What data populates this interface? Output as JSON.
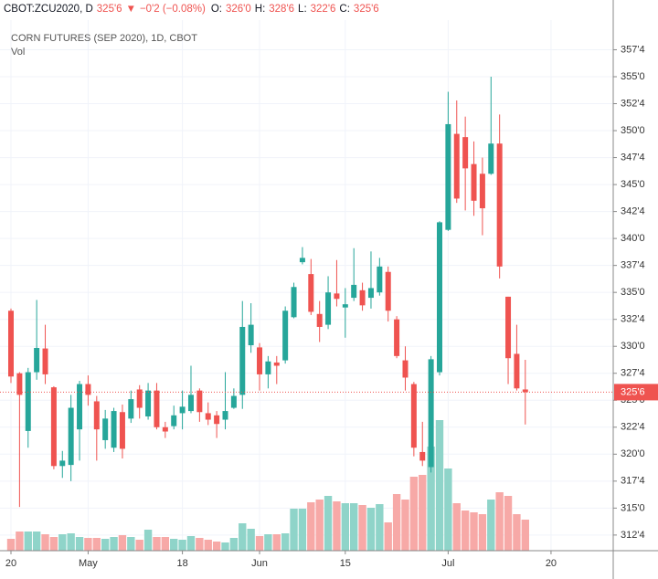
{
  "chart_data": {
    "type": "candlestick",
    "header": {
      "symbol": "CBOT:ZCU2020, D",
      "price": "325'6",
      "arrow": "▼",
      "change": "−0'2 (−0.08%)",
      "o_label": "O:",
      "o": "326'0",
      "h_label": "H:",
      "h": "328'6",
      "l_label": "L:",
      "l": "322'6",
      "c_label": "C:",
      "c": "325'6"
    },
    "title": "CORN FUTURES (SEP 2020), 1D, CBOT",
    "volume_label": "Vol",
    "categories": [
      "20",
      null,
      null,
      null,
      null,
      null,
      null,
      null,
      null,
      "May",
      null,
      null,
      null,
      null,
      null,
      null,
      null,
      null,
      null,
      null,
      "18",
      null,
      null,
      null,
      null,
      null,
      null,
      null,
      null,
      "Jun",
      null,
      null,
      null,
      null,
      null,
      null,
      null,
      null,
      null,
      "15",
      null,
      null,
      null,
      null,
      null,
      null,
      null,
      null,
      null,
      null,
      null,
      "Jul",
      null,
      null,
      null,
      null,
      null,
      null,
      null,
      null,
      null,
      null,
      null,
      "20"
    ],
    "open": [
      333.3,
      327.5,
      322.15,
      327.6,
      329.8,
      326.2,
      318.9,
      319,
      322.3,
      326.5,
      324.9,
      321.3,
      320.6,
      323.9,
      323.3,
      326,
      323.5,
      325.9,
      322.5,
      322.6,
      323.8,
      324,
      325.9,
      323.8,
      323.6,
      323.2,
      324.3,
      325.5,
      330.1,
      329.9,
      327.4,
      328.5,
      328.7,
      332.7,
      337.8,
      336.7,
      333,
      332,
      334.9,
      333.6,
      334.5,
      335.2,
      334.5,
      335,
      336.9,
      332.5,
      328.7,
      326.5,
      320.2,
      318.8,
      327.6,
      340.8,
      349.7,
      349.4,
      346.9,
      346,
      346,
      348.8,
      334.6,
      329.3,
      326,
      null,
      null,
      null
    ],
    "high": [
      333.5,
      327.6,
      328,
      334.3,
      332,
      326.3,
      320.3,
      325.5,
      326.8,
      327.3,
      325.4,
      324.1,
      324.3,
      324.6,
      325.9,
      326.4,
      326.6,
      326.6,
      323,
      324.5,
      325.9,
      328.2,
      326.1,
      324.8,
      324,
      327.6,
      326.1,
      334.2,
      334,
      330.3,
      329.1,
      329.1,
      333.7,
      335.9,
      339.2,
      338.1,
      334.2,
      336.5,
      338,
      335.4,
      339.1,
      335.9,
      338.8,
      338.2,
      337.4,
      332.8,
      330,
      326.7,
      323,
      329.1,
      341.6,
      353.6,
      352.8,
      351.3,
      349,
      347.5,
      355,
      351.5,
      334.6,
      332,
      328.75,
      null,
      null,
      null
    ],
    "low": [
      326.6,
      315.1,
      320.6,
      326.9,
      326.5,
      318.6,
      317.8,
      317.5,
      319.4,
      324.5,
      319.4,
      320.5,
      320.2,
      319.6,
      322.9,
      323.3,
      323.2,
      322.3,
      321.5,
      322.3,
      322.3,
      323.8,
      323,
      322.7,
      321.5,
      322.3,
      324.2,
      324.2,
      329.4,
      325.9,
      326.1,
      326.5,
      328.4,
      332.6,
      337.6,
      332.9,
      330.4,
      331.6,
      333.7,
      330.8,
      334.2,
      333.3,
      333.5,
      334.7,
      332.3,
      328.9,
      325.9,
      319.8,
      318.9,
      318.3,
      327.3,
      340.7,
      343.3,
      342.6,
      342.1,
      340.3,
      345.9,
      336.3,
      326.5,
      325.9,
      322.75,
      null,
      null,
      null
    ],
    "close": [
      327.2,
      325.5,
      327.6,
      329.85,
      327.4,
      318.9,
      319.4,
      324.3,
      326.5,
      325.5,
      322.3,
      323.3,
      324,
      320.5,
      325.1,
      324.3,
      325.9,
      322.5,
      322.1,
      323.6,
      324.4,
      325.5,
      323.9,
      323.2,
      322.8,
      324,
      325.4,
      331.8,
      332,
      327.4,
      328.6,
      328.2,
      333.3,
      335.5,
      338.2,
      333.2,
      331.8,
      335,
      334.4,
      333.9,
      335.7,
      333.8,
      335.4,
      337.4,
      333.3,
      329.1,
      327.1,
      320.6,
      319.4,
      328.8,
      341.5,
      350.6,
      343.7,
      346.5,
      343.5,
      342.8,
      348.8,
      337.4,
      328.9,
      326.1,
      325.75,
      null,
      null,
      null
    ],
    "volume": [
      13,
      21,
      21,
      21,
      18,
      15,
      18,
      19,
      15,
      14,
      14,
      13,
      15,
      17,
      15,
      12,
      23,
      15,
      15,
      13,
      12,
      16,
      14,
      12,
      10,
      9,
      14,
      30,
      24,
      16,
      18,
      18,
      19,
      46,
      46,
      53,
      56,
      60,
      54,
      52,
      52,
      50,
      47,
      51,
      31,
      62,
      56,
      81,
      83,
      114,
      143,
      90,
      52,
      44,
      42,
      40,
      56,
      64,
      60,
      40,
      34,
      null,
      null,
      null
    ],
    "volume_lim": [
      0,
      150
    ],
    "up_color": "#26a69a",
    "down_color": "#ef5350",
    "volume_up_color": "#8fd4c9",
    "volume_down_color": "#f7a9a7",
    "ylim": [
      311.05,
      360.25
    ],
    "yticks": [
      {
        "value": 312.5,
        "label": "312'4"
      },
      {
        "value": 315,
        "label": "315'0"
      },
      {
        "value": 317.5,
        "label": "317'4"
      },
      {
        "value": 320,
        "label": "320'0"
      },
      {
        "value": 322.5,
        "label": "322'4"
      },
      {
        "value": 325,
        "label": "325'0"
      },
      {
        "value": 327.5,
        "label": "327'4"
      },
      {
        "value": 330,
        "label": "330'0"
      },
      {
        "value": 332.5,
        "label": "332'4"
      },
      {
        "value": 335,
        "label": "335'0"
      },
      {
        "value": 337.5,
        "label": "337'4"
      },
      {
        "value": 340,
        "label": "340'0"
      },
      {
        "value": 342.5,
        "label": "342'4"
      },
      {
        "value": 345,
        "label": "345'0"
      },
      {
        "value": 347.5,
        "label": "347'4"
      },
      {
        "value": 350,
        "label": "350'0"
      },
      {
        "value": 352.5,
        "label": "352'4"
      },
      {
        "value": 355,
        "label": "355'0"
      },
      {
        "value": 357.5,
        "label": "357'4"
      }
    ],
    "last_price": {
      "value": 325.75,
      "label": "325'6"
    },
    "grid": true
  }
}
